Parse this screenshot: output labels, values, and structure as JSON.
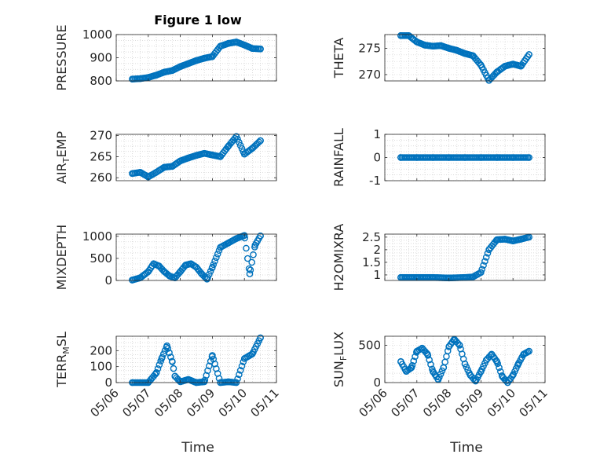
{
  "figure": {
    "title": "Figure 1 low",
    "xlabel": "Time",
    "date_ticks": [
      "05/06",
      "05/07",
      "05/08",
      "05/09",
      "05/10",
      "05/11"
    ],
    "marker_color": "#0072BD"
  },
  "chart_data": [
    {
      "type": "scatter",
      "name": "PRESSURE",
      "ylabel": "PRESSURE",
      "ylim": [
        800,
        1000
      ],
      "yticks": [
        "800",
        "900",
        "1000"
      ],
      "xlim": [
        "05/06",
        "05/11"
      ],
      "grid": true,
      "x": [
        "05/06 12:00",
        "05/06 18:00",
        "05/07 00:00",
        "05/07 06:00",
        "05/07 12:00",
        "05/07 18:00",
        "05/08 00:00",
        "05/08 06:00",
        "05/08 12:00",
        "05/08 18:00",
        "05/09 00:00",
        "05/09 06:00",
        "05/09 12:00",
        "05/09 18:00",
        "05/10 00:00",
        "05/10 06:00",
        "05/10 12:00"
      ],
      "y": [
        808,
        810,
        815,
        825,
        838,
        845,
        862,
        875,
        888,
        898,
        905,
        950,
        962,
        968,
        955,
        940,
        938
      ]
    },
    {
      "type": "scatter",
      "name": "THETA",
      "ylabel": "THETA",
      "ylim": [
        268.8,
        277.6
      ],
      "yticks": [
        "270",
        "275"
      ],
      "xlim": [
        "05/06",
        "05/11"
      ],
      "grid": true,
      "x": [
        "05/06 12:00",
        "05/06 18:00",
        "05/07 00:00",
        "05/07 06:00",
        "05/07 12:00",
        "05/07 18:00",
        "05/08 00:00",
        "05/08 06:00",
        "05/08 12:00",
        "05/08 18:00",
        "05/09 00:00",
        "05/09 06:00",
        "05/09 12:00",
        "05/09 18:00",
        "05/10 00:00",
        "05/10 06:00",
        "05/10 12:00"
      ],
      "y": [
        277.4,
        277.4,
        276.2,
        275.6,
        275.4,
        275.5,
        275.0,
        274.6,
        274.0,
        273.6,
        271.8,
        268.9,
        270.5,
        271.6,
        272.0,
        271.6,
        273.8
      ]
    },
    {
      "type": "scatter",
      "name": "AIR_TEMP",
      "ylabel": "AIR",
      "ylabel_sub": "T",
      "ylabel_suffix": "EMP",
      "ylim": [
        259.3,
        270.3
      ],
      "yticks": [
        "260",
        "265",
        "270"
      ],
      "xlim": [
        "05/06",
        "05/11"
      ],
      "grid": true,
      "x": [
        "05/06 12:00",
        "05/06 18:00",
        "05/07 00:00",
        "05/07 06:00",
        "05/07 12:00",
        "05/07 18:00",
        "05/08 00:00",
        "05/08 06:00",
        "05/08 12:00",
        "05/08 18:00",
        "05/09 00:00",
        "05/09 06:00",
        "05/09 12:00",
        "05/09 18:00",
        "05/10 00:00",
        "05/10 06:00",
        "05/10 12:00"
      ],
      "y": [
        261.0,
        261.3,
        260.2,
        261.3,
        262.5,
        262.7,
        264.0,
        264.7,
        265.3,
        265.8,
        265.4,
        265.0,
        267.5,
        269.8,
        265.6,
        267.0,
        268.8
      ]
    },
    {
      "type": "scatter",
      "name": "RAINFALL",
      "ylabel": "RAINFALL",
      "ylim": [
        -1,
        1
      ],
      "yticks": [
        "-1",
        "0",
        "1"
      ],
      "xlim": [
        "05/06",
        "05/11"
      ],
      "grid": true,
      "x": [
        "05/06 12:00",
        "05/07 00:00",
        "05/07 12:00",
        "05/08 00:00",
        "05/08 12:00",
        "05/09 00:00",
        "05/09 12:00",
        "05/10 00:00",
        "05/10 12:00"
      ],
      "y": [
        0,
        0,
        0,
        0,
        0,
        0,
        0,
        0,
        0
      ]
    },
    {
      "type": "scatter",
      "name": "MIXDEPTH",
      "ylabel": "MIXDEPTH",
      "ylim": [
        0,
        1050
      ],
      "yticks": [
        "0",
        "500",
        "1000"
      ],
      "xlim": [
        "05/06",
        "05/11"
      ],
      "grid": true,
      "x": [
        "05/06 12:00",
        "05/06 18:00",
        "05/07 00:00",
        "05/07 04:00",
        "05/07 08:00",
        "05/07 12:00",
        "05/07 16:00",
        "05/07 20:00",
        "05/08 00:00",
        "05/08 04:00",
        "05/08 08:00",
        "05/08 12:00",
        "05/08 16:00",
        "05/08 20:00",
        "05/09 00:00",
        "05/09 06:00",
        "05/09 12:00",
        "05/09 18:00",
        "05/10 00:00",
        "05/10 04:00",
        "05/10 08:00",
        "05/10 12:00"
      ],
      "y": [
        10,
        60,
        200,
        380,
        330,
        200,
        100,
        60,
        200,
        350,
        380,
        300,
        150,
        30,
        300,
        750,
        850,
        950,
        1020,
        150,
        800,
        1010
      ]
    },
    {
      "type": "scatter",
      "name": "H2OMIXRA",
      "ylabel": "H2OMIXRA",
      "ylim": [
        0.78,
        2.62
      ],
      "yticks": [
        "1",
        "1.5",
        "2",
        "2.5"
      ],
      "xlim": [
        "05/06",
        "05/11"
      ],
      "grid": true,
      "x": [
        "05/06 12:00",
        "05/07 00:00",
        "05/07 12:00",
        "05/08 00:00",
        "05/08 12:00",
        "05/08 18:00",
        "05/09 00:00",
        "05/09 06:00",
        "05/09 12:00",
        "05/09 18:00",
        "05/10 00:00",
        "05/10 06:00",
        "05/10 12:00"
      ],
      "y": [
        0.9,
        0.9,
        0.9,
        0.88,
        0.9,
        0.92,
        1.1,
        2.0,
        2.4,
        2.42,
        2.35,
        2.42,
        2.5
      ]
    },
    {
      "type": "scatter",
      "name": "TERR_MSL",
      "ylabel": "TERR",
      "ylabel_sub": "M",
      "ylabel_suffix": "SL",
      "ylim": [
        0,
        290
      ],
      "yticks": [
        "0",
        "100",
        "200"
      ],
      "xlim": [
        "05/06",
        "05/11"
      ],
      "grid": true,
      "x": [
        "05/06 12:00",
        "05/07 00:00",
        "05/07 06:00",
        "05/07 10:00",
        "05/07 14:00",
        "05/07 18:00",
        "05/07 20:00",
        "05/08 00:00",
        "05/08 06:00",
        "05/08 12:00",
        "05/08 18:00",
        "05/09 00:00",
        "05/09 06:00",
        "05/09 12:00",
        "05/09 18:00",
        "05/10 00:00",
        "05/10 06:00",
        "05/10 12:00"
      ],
      "y": [
        0,
        0,
        60,
        150,
        230,
        130,
        40,
        5,
        20,
        0,
        5,
        170,
        0,
        5,
        0,
        150,
        180,
        280
      ]
    },
    {
      "type": "scatter",
      "name": "SUN_FLUX",
      "ylabel": "SUN",
      "ylabel_sub": "F",
      "ylabel_suffix": "LUX",
      "ylim": [
        0,
        620
      ],
      "yticks": [
        "0",
        "500"
      ],
      "xlim": [
        "05/06",
        "05/11"
      ],
      "grid": true,
      "x": [
        "05/06 12:00",
        "05/06 16:00",
        "05/06 20:00",
        "05/07 00:00",
        "05/07 04:00",
        "05/07 08:00",
        "05/07 12:00",
        "05/07 16:00",
        "05/07 20:00",
        "05/08 00:00",
        "05/08 04:00",
        "05/08 08:00",
        "05/08 12:00",
        "05/08 16:00",
        "05/08 20:00",
        "05/09 00:00",
        "05/09 04:00",
        "05/09 08:00",
        "05/09 12:00",
        "05/09 16:00",
        "05/09 20:00",
        "05/10 00:00",
        "05/10 04:00",
        "05/10 08:00",
        "05/10 12:00"
      ],
      "y": [
        280,
        150,
        200,
        420,
        460,
        380,
        150,
        40,
        200,
        480,
        580,
        500,
        250,
        100,
        20,
        150,
        300,
        380,
        280,
        80,
        0,
        100,
        250,
        380,
        420
      ]
    }
  ]
}
